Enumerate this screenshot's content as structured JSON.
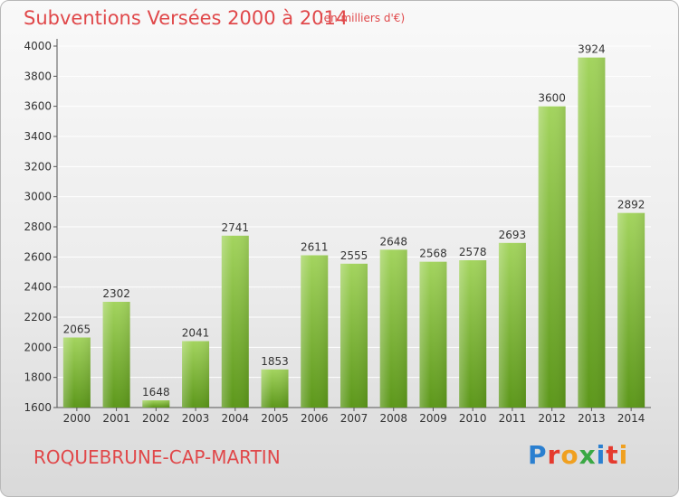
{
  "header": {
    "title": "Subventions Versées 2000 à 2014",
    "unit": "(en milliers d'€)"
  },
  "footer": {
    "commune": "ROQUEBRUNE-CAP-MARTIN",
    "logo": "Proxiti"
  },
  "chart_data": {
    "type": "bar",
    "categories": [
      "2000",
      "2001",
      "2002",
      "2003",
      "2004",
      "2005",
      "2006",
      "2007",
      "2008",
      "2009",
      "2010",
      "2011",
      "2012",
      "2013",
      "2014"
    ],
    "values": [
      2065,
      2302,
      1648,
      2041,
      2741,
      1853,
      2611,
      2555,
      2648,
      2568,
      2578,
      2693,
      3600,
      3924,
      2892
    ],
    "title": "Subventions Versées 2000 à 2014",
    "ylim": [
      1600,
      4000
    ],
    "yticks": [
      1600,
      1800,
      2000,
      2200,
      2400,
      2600,
      2800,
      3000,
      3200,
      3400,
      3600,
      3800,
      4000
    ],
    "grid": true,
    "colors": {
      "bar_light": "#9fd05a",
      "bar_dark": "#5f9a1c",
      "grid": "#ffffff",
      "axis": "#555555"
    }
  }
}
